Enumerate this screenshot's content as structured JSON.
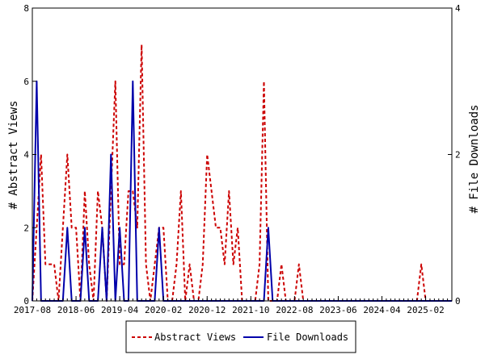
{
  "chart_data": {
    "type": "line",
    "ylabel": "# Abstract Views",
    "y2label": "# File Downloads",
    "ylim": [
      0,
      8
    ],
    "y2lim": [
      0,
      4
    ],
    "yticks": [
      0,
      2,
      4,
      6,
      8
    ],
    "y2ticks": [
      0,
      2,
      4
    ],
    "x_range": [
      "2017-08",
      "2025-08"
    ],
    "x_ticks": [
      "2017-08",
      "2018-06",
      "2019-04",
      "2020-02",
      "2020-12",
      "2021-10",
      "2022-08",
      "2023-06",
      "2024-04",
      "2025-02"
    ],
    "grid": false,
    "legend_position": "bottom-center",
    "series": [
      {
        "name": "Abstract Views",
        "axis": "left",
        "color": "#cc0000",
        "style": "dashed",
        "points": [
          [
            "2017-08",
            0
          ],
          [
            "2017-09",
            2
          ],
          [
            "2017-10",
            4
          ],
          [
            "2017-11",
            1
          ],
          [
            "2017-12",
            1
          ],
          [
            "2018-01",
            1
          ],
          [
            "2018-02",
            0
          ],
          [
            "2018-03",
            2
          ],
          [
            "2018-04",
            4
          ],
          [
            "2018-05",
            2
          ],
          [
            "2018-06",
            2
          ],
          [
            "2018-07",
            0
          ],
          [
            "2018-08",
            3
          ],
          [
            "2018-09",
            1
          ],
          [
            "2018-10",
            0
          ],
          [
            "2018-11",
            3
          ],
          [
            "2018-12",
            2
          ],
          [
            "2019-01",
            0
          ],
          [
            "2019-02",
            3
          ],
          [
            "2019-03",
            6
          ],
          [
            "2019-04",
            1
          ],
          [
            "2019-05",
            1
          ],
          [
            "2019-06",
            3
          ],
          [
            "2019-07",
            3
          ],
          [
            "2019-08",
            2
          ],
          [
            "2019-09",
            7
          ],
          [
            "2019-10",
            1
          ],
          [
            "2019-11",
            0
          ],
          [
            "2019-12",
            1
          ],
          [
            "2020-01",
            2
          ],
          [
            "2020-02",
            2
          ],
          [
            "2020-03",
            0
          ],
          [
            "2020-04",
            0
          ],
          [
            "2020-05",
            1
          ],
          [
            "2020-06",
            3
          ],
          [
            "2020-07",
            0
          ],
          [
            "2020-08",
            1
          ],
          [
            "2020-09",
            0
          ],
          [
            "2020-10",
            0
          ],
          [
            "2020-11",
            1
          ],
          [
            "2020-12",
            4
          ],
          [
            "2021-01",
            3
          ],
          [
            "2021-02",
            2
          ],
          [
            "2021-03",
            2
          ],
          [
            "2021-04",
            1
          ],
          [
            "2021-05",
            3
          ],
          [
            "2021-06",
            1
          ],
          [
            "2021-07",
            2
          ],
          [
            "2021-08",
            0
          ],
          [
            "2021-09",
            0
          ],
          [
            "2021-10",
            0
          ],
          [
            "2021-11",
            0
          ],
          [
            "2021-12",
            1
          ],
          [
            "2022-01",
            6
          ],
          [
            "2022-02",
            0
          ],
          [
            "2022-03",
            0
          ],
          [
            "2022-04",
            0
          ],
          [
            "2022-05",
            1
          ],
          [
            "2022-06",
            0
          ],
          [
            "2022-07",
            0
          ],
          [
            "2022-08",
            0
          ],
          [
            "2022-09",
            1
          ],
          [
            "2022-10",
            0
          ],
          [
            "2022-11",
            0
          ],
          [
            "2022-12",
            0
          ],
          [
            "2023-01",
            0
          ],
          [
            "2023-06",
            0
          ],
          [
            "2024-01",
            0
          ],
          [
            "2024-06",
            0
          ],
          [
            "2024-12",
            0
          ],
          [
            "2025-01",
            1
          ],
          [
            "2025-02",
            0
          ],
          [
            "2025-06",
            0
          ],
          [
            "2025-08",
            0
          ]
        ]
      },
      {
        "name": "File Downloads",
        "axis": "right",
        "color": "#0000aa",
        "style": "solid",
        "points": [
          [
            "2017-08",
            0
          ],
          [
            "2017-09",
            3
          ],
          [
            "2017-10",
            0
          ],
          [
            "2017-11",
            0
          ],
          [
            "2017-12",
            0
          ],
          [
            "2018-01",
            0
          ],
          [
            "2018-02",
            0
          ],
          [
            "2018-03",
            0
          ],
          [
            "2018-04",
            1
          ],
          [
            "2018-05",
            0
          ],
          [
            "2018-06",
            0
          ],
          [
            "2018-07",
            0
          ],
          [
            "2018-08",
            1
          ],
          [
            "2018-09",
            0
          ],
          [
            "2018-10",
            0
          ],
          [
            "2018-11",
            0
          ],
          [
            "2018-12",
            1
          ],
          [
            "2019-01",
            0
          ],
          [
            "2019-02",
            2
          ],
          [
            "2019-03",
            0
          ],
          [
            "2019-04",
            1
          ],
          [
            "2019-05",
            0
          ],
          [
            "2019-06",
            0
          ],
          [
            "2019-07",
            3
          ],
          [
            "2019-08",
            0
          ],
          [
            "2019-09",
            0
          ],
          [
            "2019-10",
            0
          ],
          [
            "2019-11",
            0
          ],
          [
            "2019-12",
            0
          ],
          [
            "2020-01",
            1
          ],
          [
            "2020-02",
            0
          ],
          [
            "2020-03",
            0
          ],
          [
            "2021-06",
            0
          ],
          [
            "2021-12",
            0
          ],
          [
            "2022-01",
            0
          ],
          [
            "2022-02",
            1
          ],
          [
            "2022-03",
            0
          ],
          [
            "2022-06",
            0
          ],
          [
            "2023-06",
            0
          ],
          [
            "2024-06",
            0
          ],
          [
            "2025-08",
            0
          ]
        ]
      }
    ]
  }
}
